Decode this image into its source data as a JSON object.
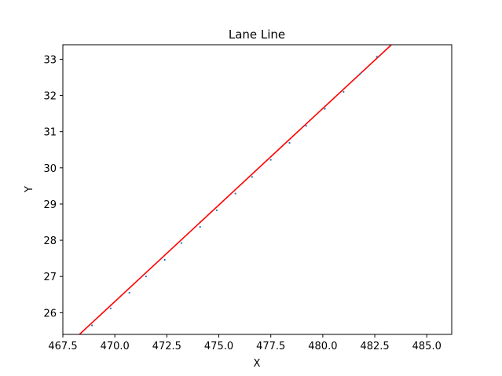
{
  "chart_data": {
    "type": "scatter",
    "title": "Lane Line",
    "xlabel": "X",
    "ylabel": "Y",
    "xlim": [
      467.5,
      486.2
    ],
    "ylim": [
      25.4,
      33.4
    ],
    "x_ticks": [
      467.5,
      470.0,
      472.5,
      475.0,
      477.5,
      480.0,
      482.5,
      485.0
    ],
    "x_tick_labels": [
      "467.5",
      "470.0",
      "472.5",
      "475.0",
      "477.5",
      "480.0",
      "482.5",
      "485.0"
    ],
    "y_ticks": [
      26,
      27,
      28,
      29,
      30,
      31,
      32,
      33
    ],
    "y_tick_labels": [
      "26",
      "27",
      "28",
      "29",
      "30",
      "31",
      "32",
      "33"
    ],
    "grid": false,
    "colors": {
      "points": "#1f77b4",
      "fit_line": "#ff0000"
    },
    "series": [
      {
        "type": "scatter",
        "points": [
          [
            468.9,
            25.65
          ],
          [
            469.8,
            26.12
          ],
          [
            470.7,
            26.55
          ],
          [
            471.5,
            27.0
          ],
          [
            472.4,
            27.46
          ],
          [
            473.2,
            27.92
          ],
          [
            474.1,
            28.37
          ],
          [
            474.9,
            28.83
          ],
          [
            475.8,
            29.29
          ],
          [
            476.6,
            29.75
          ],
          [
            477.5,
            30.22
          ],
          [
            478.4,
            30.69
          ],
          [
            479.2,
            31.16
          ],
          [
            480.1,
            31.63
          ],
          [
            481.0,
            32.1
          ],
          [
            481.8,
            32.6
          ],
          [
            482.6,
            33.07
          ]
        ]
      },
      {
        "type": "line",
        "points": [
          [
            468.3,
            25.4
          ],
          [
            483.3,
            33.4
          ]
        ]
      }
    ]
  }
}
